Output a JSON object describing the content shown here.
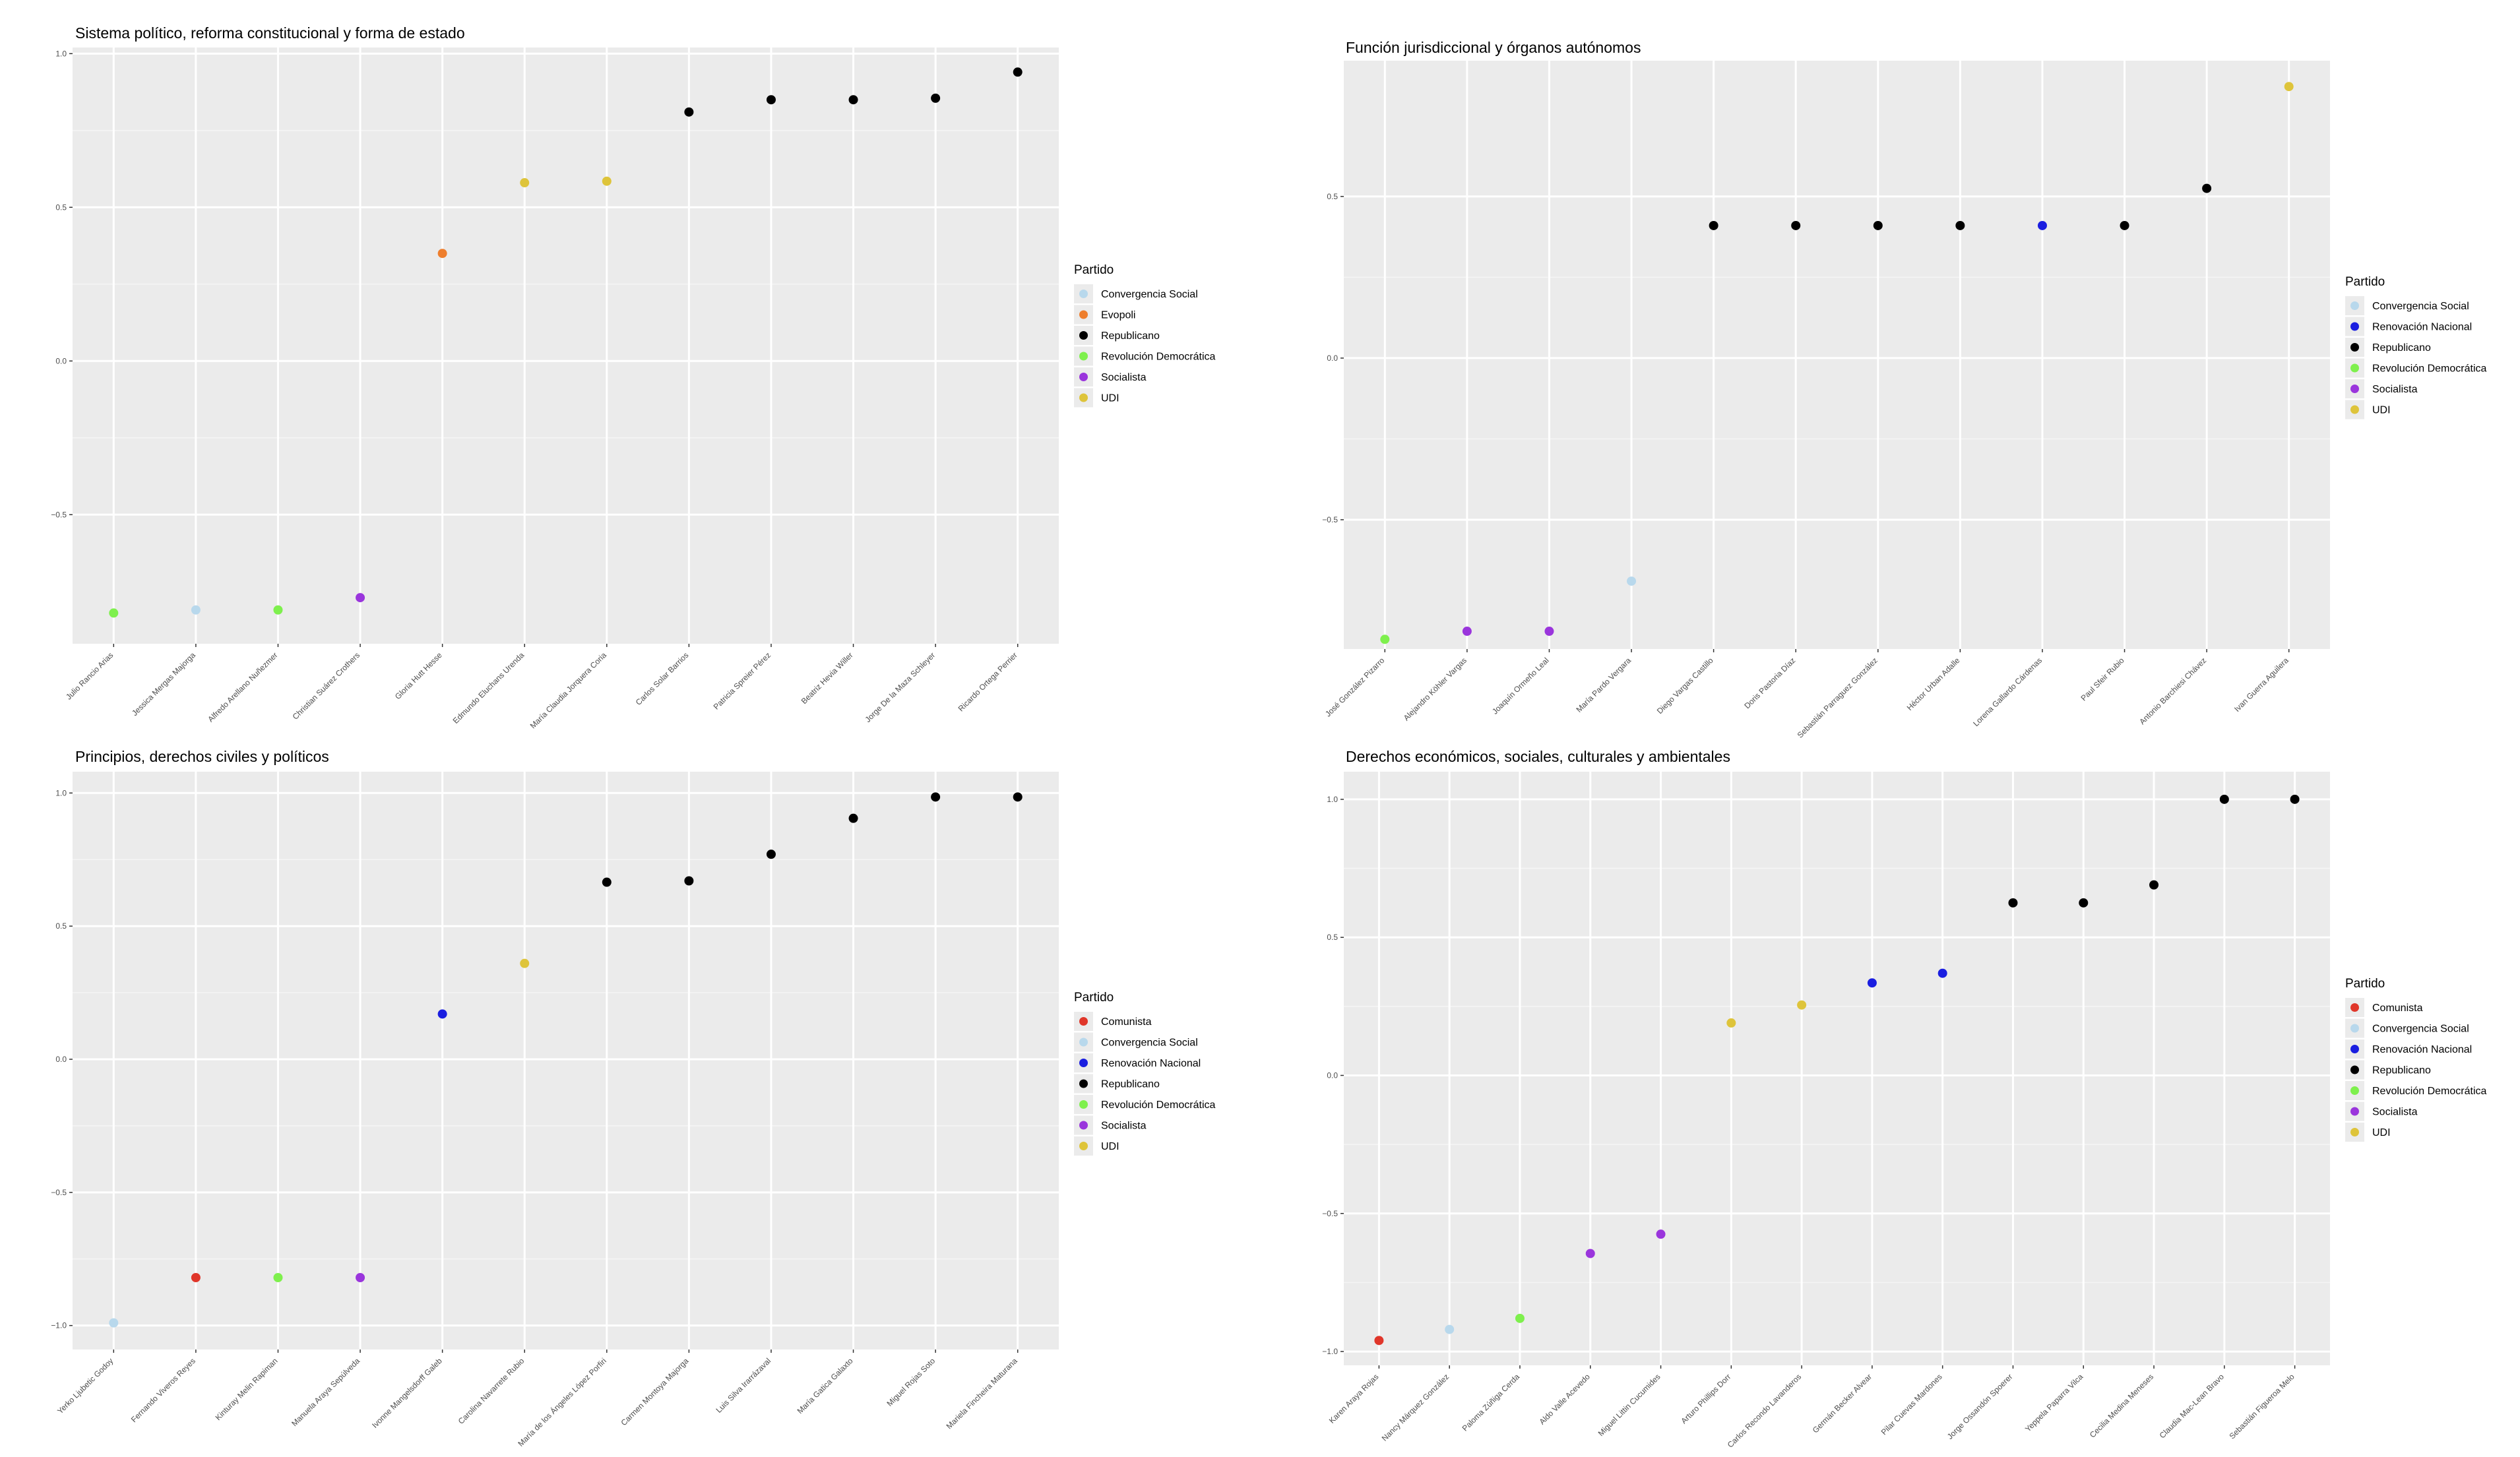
{
  "chart_data": [
    {
      "type": "scatter",
      "title": "Sistema político, reforma constitucional y forma de estado",
      "xlabel": "",
      "ylabel": "",
      "ylim": [
        -0.92,
        1.02
      ],
      "yticks": [
        1.0,
        0.5,
        0.0,
        -0.5
      ],
      "ytick_labels": [
        "1.0",
        "0.5",
        "0.0",
        "−0.5"
      ],
      "legend_title": "Partido",
      "legend": [
        "Convergencia Social",
        "Evopoli",
        "Republicano",
        "Revolución Democrática",
        "Socialista",
        "UDI"
      ],
      "points": [
        {
          "x": "Julio Rancio Arias",
          "y": -0.82,
          "party": "Revolución Democrática"
        },
        {
          "x": "Jessica Mergas Majorga",
          "y": -0.81,
          "party": "Convergencia Social"
        },
        {
          "x": "Alfredo Arellano Nuñezmer",
          "y": -0.81,
          "party": "Revolución Democrática"
        },
        {
          "x": "Christian Suárez Crothers",
          "y": -0.77,
          "party": "Socialista"
        },
        {
          "x": "Gloria Hutt Hesse",
          "y": 0.35,
          "party": "Evopoli"
        },
        {
          "x": "Edmundo Eluchans Urenda",
          "y": 0.58,
          "party": "UDI"
        },
        {
          "x": "María Claudia Jorquera Coria",
          "y": 0.585,
          "party": "UDI"
        },
        {
          "x": "Carlos Solar Barrios",
          "y": 0.81,
          "party": "Republicano"
        },
        {
          "x": "Patricia Spreier Pérez",
          "y": 0.85,
          "party": "Republicano"
        },
        {
          "x": "Beatriz Hevia Willer",
          "y": 0.85,
          "party": "Republicano"
        },
        {
          "x": "Jorge De la Maza Schleyer",
          "y": 0.855,
          "party": "Republicano"
        },
        {
          "x": "Ricardo Ortega Perrier",
          "y": 0.94,
          "party": "Republicano"
        }
      ]
    },
    {
      "type": "scatter",
      "title": "Función jurisdiccional y órganos autónomos",
      "xlabel": "",
      "ylabel": "",
      "ylim": [
        -0.9,
        0.92
      ],
      "yticks": [
        0.5,
        0.0,
        -0.5
      ],
      "ytick_labels": [
        "0.5",
        "0.0",
        "−0.5"
      ],
      "legend_title": "Partido",
      "legend": [
        "Convergencia Social",
        "Renovación Nacional",
        "Republicano",
        "Revolución Democrática",
        "Socialista",
        "UDI"
      ],
      "points": [
        {
          "x": "José González Pizarro",
          "y": -0.87,
          "party": "Revolución Democrática"
        },
        {
          "x": "Alejandro Köhler Vargas",
          "y": -0.845,
          "party": "Socialista"
        },
        {
          "x": "Joaquín Ormeño Leal",
          "y": -0.845,
          "party": "Socialista"
        },
        {
          "x": "María Pardo Vergara",
          "y": -0.69,
          "party": "Convergencia Social"
        },
        {
          "x": "Diego Vargas Castillo",
          "y": 0.41,
          "party": "Republicano"
        },
        {
          "x": "Doris Pastoria Díaz",
          "y": 0.41,
          "party": "Republicano"
        },
        {
          "x": "Sebastián Parraguez González",
          "y": 0.41,
          "party": "Republicano"
        },
        {
          "x": "Héctor Urban Adalle",
          "y": 0.41,
          "party": "Republicano"
        },
        {
          "x": "Lorena Gallardo Cárdenas",
          "y": 0.41,
          "party": "Renovación Nacional"
        },
        {
          "x": "Paul Sfeir Rubio",
          "y": 0.41,
          "party": "Republicano"
        },
        {
          "x": "Antonio Barchiesi Chávez",
          "y": 0.525,
          "party": "Republicano"
        },
        {
          "x": "Ivan Guerra Aguilera",
          "y": 0.84,
          "party": "UDI"
        }
      ]
    },
    {
      "type": "scatter",
      "title": "Principios, derechos civiles y políticos",
      "xlabel": "",
      "ylabel": "",
      "ylim": [
        -1.09,
        1.08
      ],
      "yticks": [
        1.0,
        0.5,
        0.0,
        -0.5,
        -1.0
      ],
      "ytick_labels": [
        "1.0",
        "0.5",
        "0.0",
        "−0.5",
        "−1.0"
      ],
      "legend_title": "Partido",
      "legend": [
        "Comunista",
        "Convergencia Social",
        "Renovación Nacional",
        "Republicano",
        "Revolución Democrática",
        "Socialista",
        "UDI"
      ],
      "points": [
        {
          "x": "Yerko Ljubetic Godoy",
          "y": -0.99,
          "party": "Convergencia Social"
        },
        {
          "x": "Fernando Viveros Reyes",
          "y": -0.82,
          "party": "Comunista"
        },
        {
          "x": "Kinturay Melin Rapiman",
          "y": -0.82,
          "party": "Revolución Democrática"
        },
        {
          "x": "Manuela Araya Sepúlveda",
          "y": -0.82,
          "party": "Socialista"
        },
        {
          "x": "Ivonne Mangelsdorff Galeb",
          "y": 0.17,
          "party": "Renovación Nacional"
        },
        {
          "x": "Carolina Navarrete Rubio",
          "y": 0.36,
          "party": "UDI"
        },
        {
          "x": "María de los Ángeles López Porfiri",
          "y": 0.665,
          "party": "Republicano"
        },
        {
          "x": "Carmen Montoya Majorga",
          "y": 0.67,
          "party": "Republicano"
        },
        {
          "x": "Luis Silva Irarrázaval",
          "y": 0.77,
          "party": "Republicano"
        },
        {
          "x": "María Gatica Galaxto",
          "y": 0.905,
          "party": "Republicano"
        },
        {
          "x": "Miguel Rojas Soto",
          "y": 0.985,
          "party": "Republicano"
        },
        {
          "x": "Mariela Fincheira Maturana",
          "y": 0.985,
          "party": "Republicano"
        }
      ]
    },
    {
      "type": "scatter",
      "title": "Derechos económicos, sociales, culturales y ambientales",
      "xlabel": "",
      "ylabel": "",
      "ylim": [
        -1.05,
        1.1
      ],
      "yticks": [
        1.0,
        0.5,
        0.0,
        -0.5,
        -1.0
      ],
      "ytick_labels": [
        "1.0",
        "0.5",
        "0.0",
        "−0.5",
        "−1.0"
      ],
      "legend_title": "Partido",
      "legend": [
        "Comunista",
        "Convergencia Social",
        "Renovación Nacional",
        "Republicano",
        "Revolución Democrática",
        "Socialista",
        "UDI"
      ],
      "points": [
        {
          "x": "Karen Araya Rojas",
          "y": -0.96,
          "party": "Comunista"
        },
        {
          "x": "Nancy Márquez González",
          "y": -0.92,
          "party": "Convergencia Social"
        },
        {
          "x": "Paloma Zúñiga Cerda",
          "y": -0.88,
          "party": "Revolución Democrática"
        },
        {
          "x": "Aldo Valle Acevedo",
          "y": -0.645,
          "party": "Socialista"
        },
        {
          "x": "Miguel Littin Cucumides",
          "y": -0.575,
          "party": "Socialista"
        },
        {
          "x": "Arturo Phillips Dorr",
          "y": 0.19,
          "party": "UDI"
        },
        {
          "x": "Carlos Recondo Lavanderos",
          "y": 0.255,
          "party": "UDI"
        },
        {
          "x": "Germán Becker Alvear",
          "y": 0.335,
          "party": "Renovación Nacional"
        },
        {
          "x": "Pilar Cuevas Mardones",
          "y": 0.37,
          "party": "Renovación Nacional"
        },
        {
          "x": "Jorge Ossandón Spoerer",
          "y": 0.625,
          "party": "Republicano"
        },
        {
          "x": "Yeppela Paparra Vilca",
          "y": 0.625,
          "party": "Republicano"
        },
        {
          "x": "Cecilia Medina Meneses",
          "y": 0.69,
          "party": "Republicano"
        },
        {
          "x": "Claudia Mac-Lean Bravo",
          "y": 1.0,
          "party": "Republicano"
        },
        {
          "x": "Sebastián Figueroa Melo",
          "y": 1.0,
          "party": "Republicano"
        }
      ]
    }
  ],
  "party_colors": {
    "Comunista": "#e0362a",
    "Convergencia Social": "#b8d8ec",
    "Evopoli": "#ee7e2d",
    "Renovación Nacional": "#1a1ee0",
    "Republicano": "#000000",
    "Revolución Democrática": "#7ef04d",
    "Socialista": "#9a35dc",
    "UDI": "#dec43a"
  }
}
